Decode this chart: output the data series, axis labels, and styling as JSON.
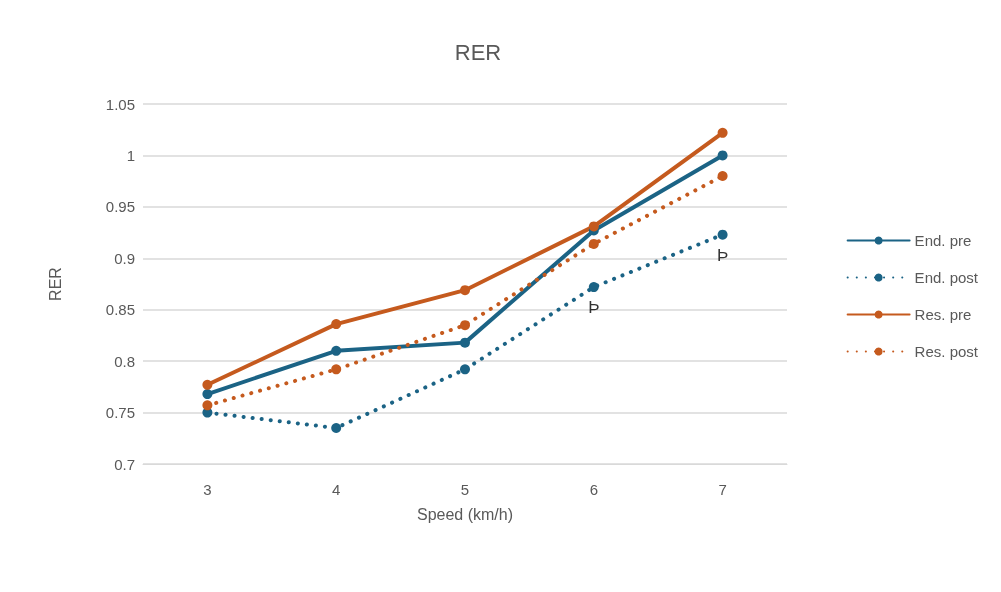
{
  "chart_data": {
    "type": "line",
    "title": "RER",
    "xlabel": "Speed (km/h)",
    "ylabel": "RER",
    "categories": [
      "3",
      "4",
      "5",
      "6",
      "7"
    ],
    "series": [
      {
        "name": "End. pre",
        "color": "#1b6385",
        "line_style": "solid",
        "values": [
          0.768,
          0.81,
          0.818,
          0.927,
          1.0
        ]
      },
      {
        "name": "End. post",
        "color": "#1b6385",
        "line_style": "dotted",
        "values": [
          0.75,
          0.735,
          0.792,
          0.872,
          0.923
        ]
      },
      {
        "name": "Res. pre",
        "color": "#c55a1e",
        "line_style": "solid",
        "values": [
          0.777,
          0.836,
          0.869,
          0.931,
          1.022
        ]
      },
      {
        "name": "Res. post",
        "color": "#c55a1e",
        "line_style": "dotted",
        "values": [
          0.757,
          0.792,
          0.835,
          0.914,
          0.98
        ]
      }
    ],
    "annotations": [
      {
        "text": "Þ",
        "x": "6",
        "y": 0.872
      },
      {
        "text": "Þ",
        "x": "7",
        "y": 0.923
      }
    ],
    "ylim": [
      0.7,
      1.05
    ],
    "yticks": [
      0.7,
      0.75,
      0.8,
      0.85,
      0.9,
      0.95,
      1,
      1.05
    ],
    "grid": "y",
    "legend": "right",
    "marker": "circle"
  }
}
